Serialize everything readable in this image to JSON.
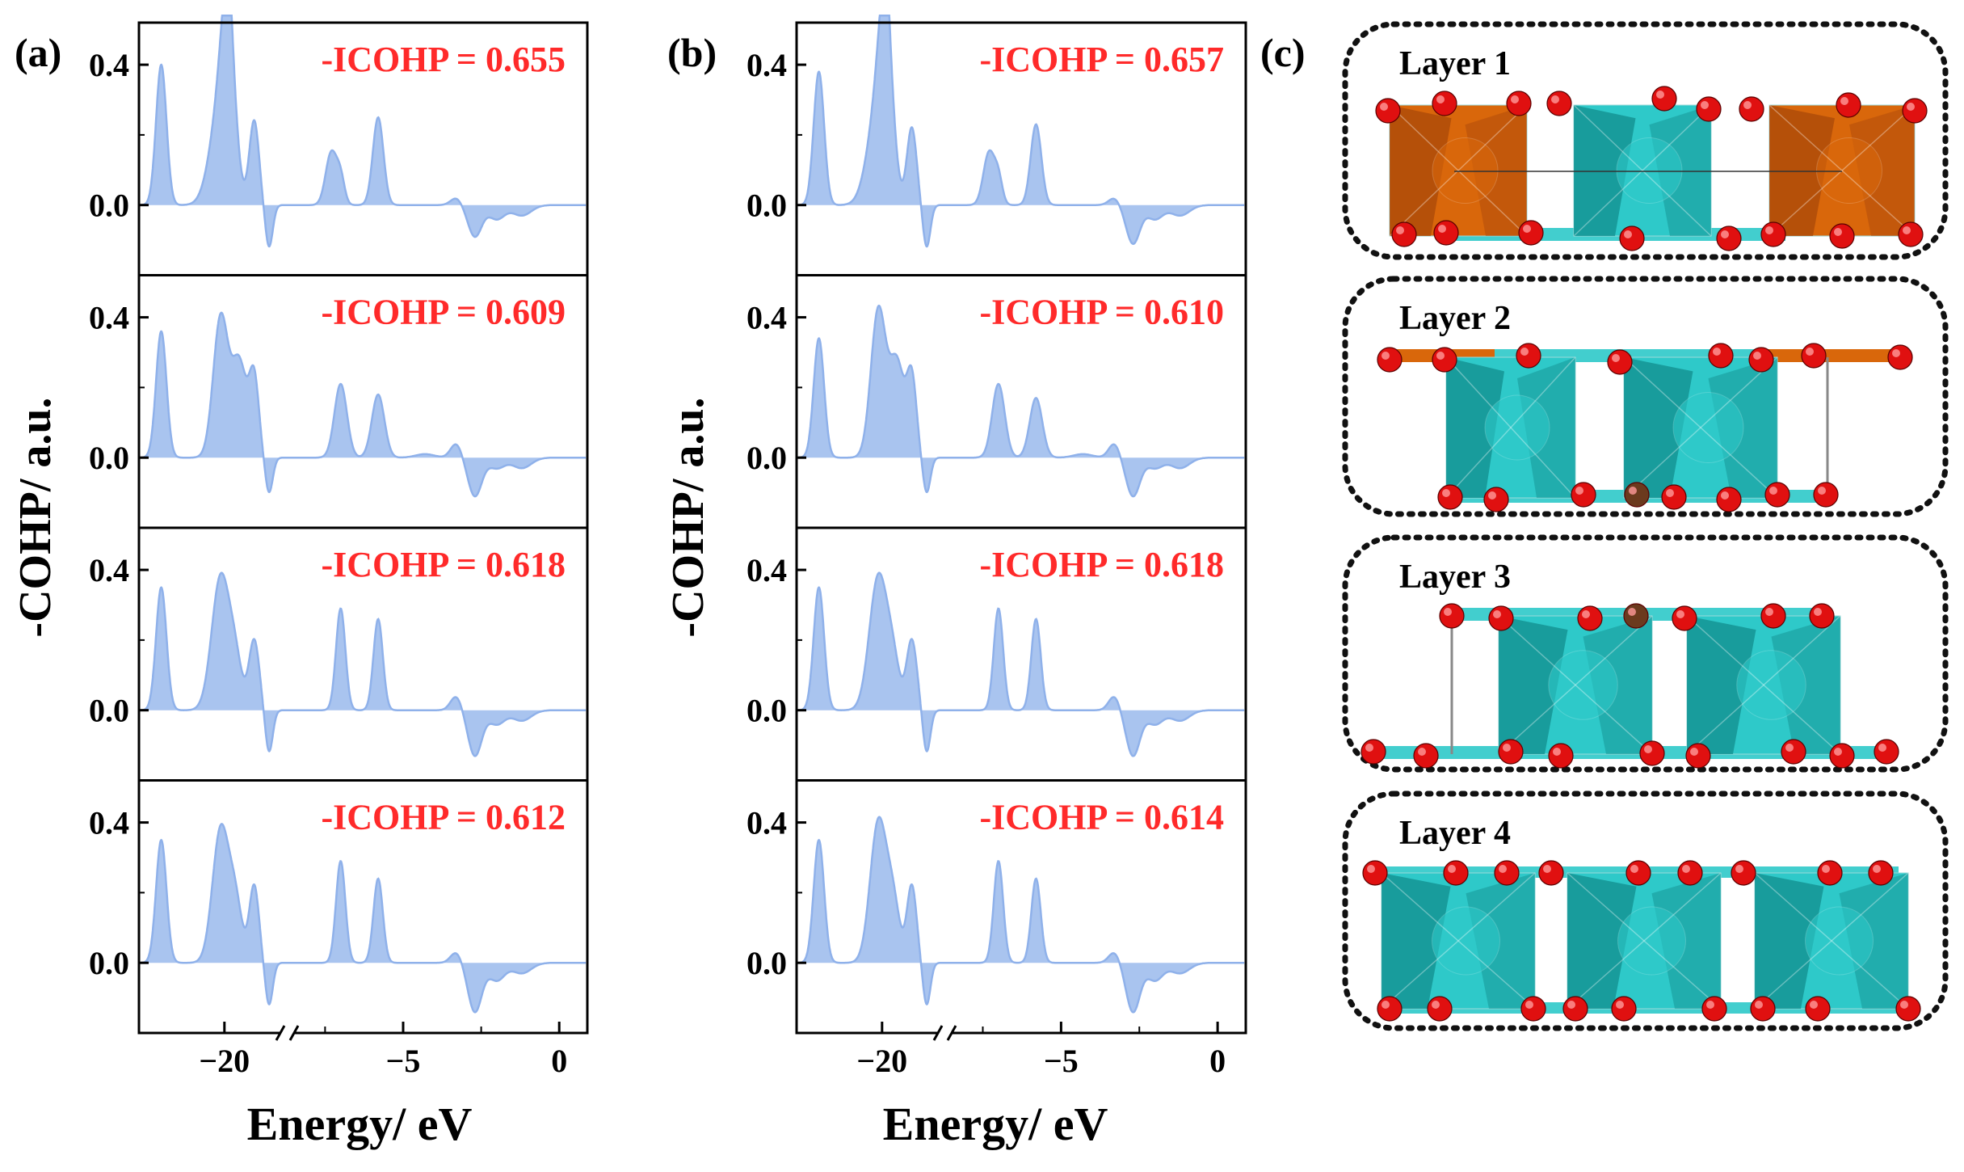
{
  "figure": {
    "panel_a_label": "(a)",
    "panel_b_label": "(b)",
    "panel_c_label": "(c)",
    "y_axis_label": "-COHP/ a.u.",
    "x_axis_label": "Energy/ eV",
    "x_tick_labels": [
      "−20",
      "−5",
      "0"
    ],
    "y_tick_labels": [
      "0.4",
      "0.0"
    ],
    "colors": {
      "fill": "#a9c4ef",
      "line": "#8fb1ea",
      "icohp_text": "#ff2a2a",
      "axis": "#000000"
    }
  },
  "chart_data": [
    {
      "type": "area",
      "panel": "a",
      "xlabel": "Energy/ eV",
      "ylabel": "-COHP/ a.u.",
      "x_break": [
        -18.3,
        -8.7
      ],
      "xlim": [
        -22.3,
        0.9
      ],
      "ylim": [
        -0.2,
        0.52
      ],
      "x_ticks": [
        -20,
        -5,
        0
      ],
      "y_ticks": [
        0.0,
        0.4
      ],
      "subplots": [
        {
          "label": "-ICOHP = 0.655",
          "peaks": [
            [
              -21.7,
              0.4,
              0.14
            ],
            [
              -20.1,
              0.28,
              0.28
            ],
            [
              -19.9,
              0.38,
              0.18
            ],
            [
              -19.9,
              0.1,
              0.08
            ],
            [
              -19.2,
              0.24,
              0.13
            ],
            [
              -18.8,
              -0.12,
              0.1
            ],
            [
              -7.3,
              0.15,
              0.18
            ],
            [
              -7.0,
              0.07,
              0.13
            ],
            [
              -5.8,
              0.25,
              0.17
            ],
            [
              -3.3,
              0.02,
              0.18
            ],
            [
              -2.7,
              -0.09,
              0.22
            ],
            [
              -2.0,
              -0.04,
              0.25
            ],
            [
              -1.2,
              -0.03,
              0.3
            ]
          ]
        },
        {
          "label": "-ICOHP = 0.609",
          "peaks": [
            [
              -21.7,
              0.36,
              0.14
            ],
            [
              -20.1,
              0.4,
              0.2
            ],
            [
              -19.6,
              0.27,
              0.2
            ],
            [
              -19.2,
              0.22,
              0.13
            ],
            [
              -18.8,
              -0.1,
              0.1
            ],
            [
              -7.0,
              0.21,
              0.2
            ],
            [
              -5.8,
              0.18,
              0.2
            ],
            [
              -4.3,
              0.01,
              0.3
            ],
            [
              -3.3,
              0.04,
              0.18
            ],
            [
              -2.7,
              -0.11,
              0.22
            ],
            [
              -2.0,
              -0.03,
              0.25
            ],
            [
              -1.2,
              -0.03,
              0.3
            ]
          ]
        },
        {
          "label": "-ICOHP = 0.618",
          "peaks": [
            [
              -21.7,
              0.35,
              0.14
            ],
            [
              -20.1,
              0.38,
              0.24
            ],
            [
              -19.7,
              0.12,
              0.18
            ],
            [
              -19.2,
              0.2,
              0.14
            ],
            [
              -18.8,
              -0.12,
              0.1
            ],
            [
              -7.0,
              0.29,
              0.15
            ],
            [
              -5.8,
              0.26,
              0.15
            ],
            [
              -3.3,
              0.04,
              0.18
            ],
            [
              -2.7,
              -0.13,
              0.22
            ],
            [
              -2.0,
              -0.04,
              0.25
            ],
            [
              -1.2,
              -0.03,
              0.3
            ]
          ]
        },
        {
          "label": "-ICOHP = 0.612",
          "peaks": [
            [
              -21.7,
              0.35,
              0.14
            ],
            [
              -20.1,
              0.38,
              0.22
            ],
            [
              -19.7,
              0.16,
              0.18
            ],
            [
              -19.2,
              0.22,
              0.13
            ],
            [
              -18.8,
              -0.12,
              0.1
            ],
            [
              -7.0,
              0.29,
              0.15
            ],
            [
              -5.8,
              0.24,
              0.15
            ],
            [
              -3.3,
              0.03,
              0.18
            ],
            [
              -2.7,
              -0.14,
              0.22
            ],
            [
              -2.0,
              -0.05,
              0.25
            ],
            [
              -1.2,
              -0.03,
              0.3
            ]
          ]
        }
      ]
    },
    {
      "type": "area",
      "panel": "b",
      "xlabel": "Energy/ eV",
      "ylabel": "-COHP/ a.u.",
      "x_break": [
        -18.3,
        -8.7
      ],
      "xlim": [
        -22.3,
        0.9
      ],
      "ylim": [
        -0.2,
        0.52
      ],
      "x_ticks": [
        -20,
        -5,
        0
      ],
      "y_ticks": [
        0.0,
        0.4
      ],
      "subplots": [
        {
          "label": "-ICOHP = 0.657",
          "peaks": [
            [
              -21.7,
              0.38,
              0.14
            ],
            [
              -20.1,
              0.28,
              0.28
            ],
            [
              -19.9,
              0.38,
              0.18
            ],
            [
              -19.9,
              0.1,
              0.08
            ],
            [
              -19.2,
              0.22,
              0.13
            ],
            [
              -18.8,
              -0.12,
              0.1
            ],
            [
              -7.3,
              0.15,
              0.18
            ],
            [
              -7.0,
              0.07,
              0.13
            ],
            [
              -5.8,
              0.23,
              0.17
            ],
            [
              -3.3,
              0.02,
              0.18
            ],
            [
              -2.7,
              -0.11,
              0.22
            ],
            [
              -2.0,
              -0.04,
              0.25
            ],
            [
              -1.2,
              -0.03,
              0.3
            ]
          ]
        },
        {
          "label": "-ICOHP = 0.610",
          "peaks": [
            [
              -21.7,
              0.34,
              0.14
            ],
            [
              -20.1,
              0.42,
              0.2
            ],
            [
              -19.6,
              0.27,
              0.2
            ],
            [
              -19.2,
              0.22,
              0.13
            ],
            [
              -18.8,
              -0.1,
              0.1
            ],
            [
              -7.0,
              0.21,
              0.2
            ],
            [
              -5.8,
              0.17,
              0.2
            ],
            [
              -4.3,
              0.01,
              0.3
            ],
            [
              -3.3,
              0.04,
              0.18
            ],
            [
              -2.7,
              -0.11,
              0.22
            ],
            [
              -2.0,
              -0.03,
              0.25
            ],
            [
              -1.2,
              -0.03,
              0.3
            ]
          ]
        },
        {
          "label": "-ICOHP = 0.618",
          "peaks": [
            [
              -21.7,
              0.35,
              0.14
            ],
            [
              -20.1,
              0.38,
              0.24
            ],
            [
              -19.7,
              0.12,
              0.18
            ],
            [
              -19.2,
              0.2,
              0.14
            ],
            [
              -18.8,
              -0.12,
              0.1
            ],
            [
              -7.0,
              0.29,
              0.15
            ],
            [
              -5.8,
              0.26,
              0.15
            ],
            [
              -3.3,
              0.04,
              0.18
            ],
            [
              -2.7,
              -0.13,
              0.22
            ],
            [
              -2.0,
              -0.04,
              0.25
            ],
            [
              -1.2,
              -0.03,
              0.3
            ]
          ]
        },
        {
          "label": "-ICOHP = 0.614",
          "peaks": [
            [
              -21.7,
              0.35,
              0.14
            ],
            [
              -20.1,
              0.4,
              0.22
            ],
            [
              -19.7,
              0.16,
              0.18
            ],
            [
              -19.2,
              0.22,
              0.13
            ],
            [
              -18.8,
              -0.12,
              0.1
            ],
            [
              -7.0,
              0.29,
              0.15
            ],
            [
              -5.8,
              0.24,
              0.15
            ],
            [
              -3.3,
              0.03,
              0.18
            ],
            [
              -2.7,
              -0.14,
              0.22
            ],
            [
              -2.0,
              -0.05,
              0.25
            ],
            [
              -1.2,
              -0.03,
              0.3
            ]
          ]
        }
      ]
    }
  ],
  "structure_panel": {
    "layers": [
      "Layer 1",
      "Layer 2",
      "Layer 3",
      "Layer 4"
    ],
    "colors": {
      "orange": "#d9670b",
      "orange_dark": "#a8480a",
      "cyan": "#2ec9c9",
      "cyan_dark": "#128c8c",
      "atom_red": "#e01010",
      "atom_brown": "#6b3a1e"
    }
  }
}
